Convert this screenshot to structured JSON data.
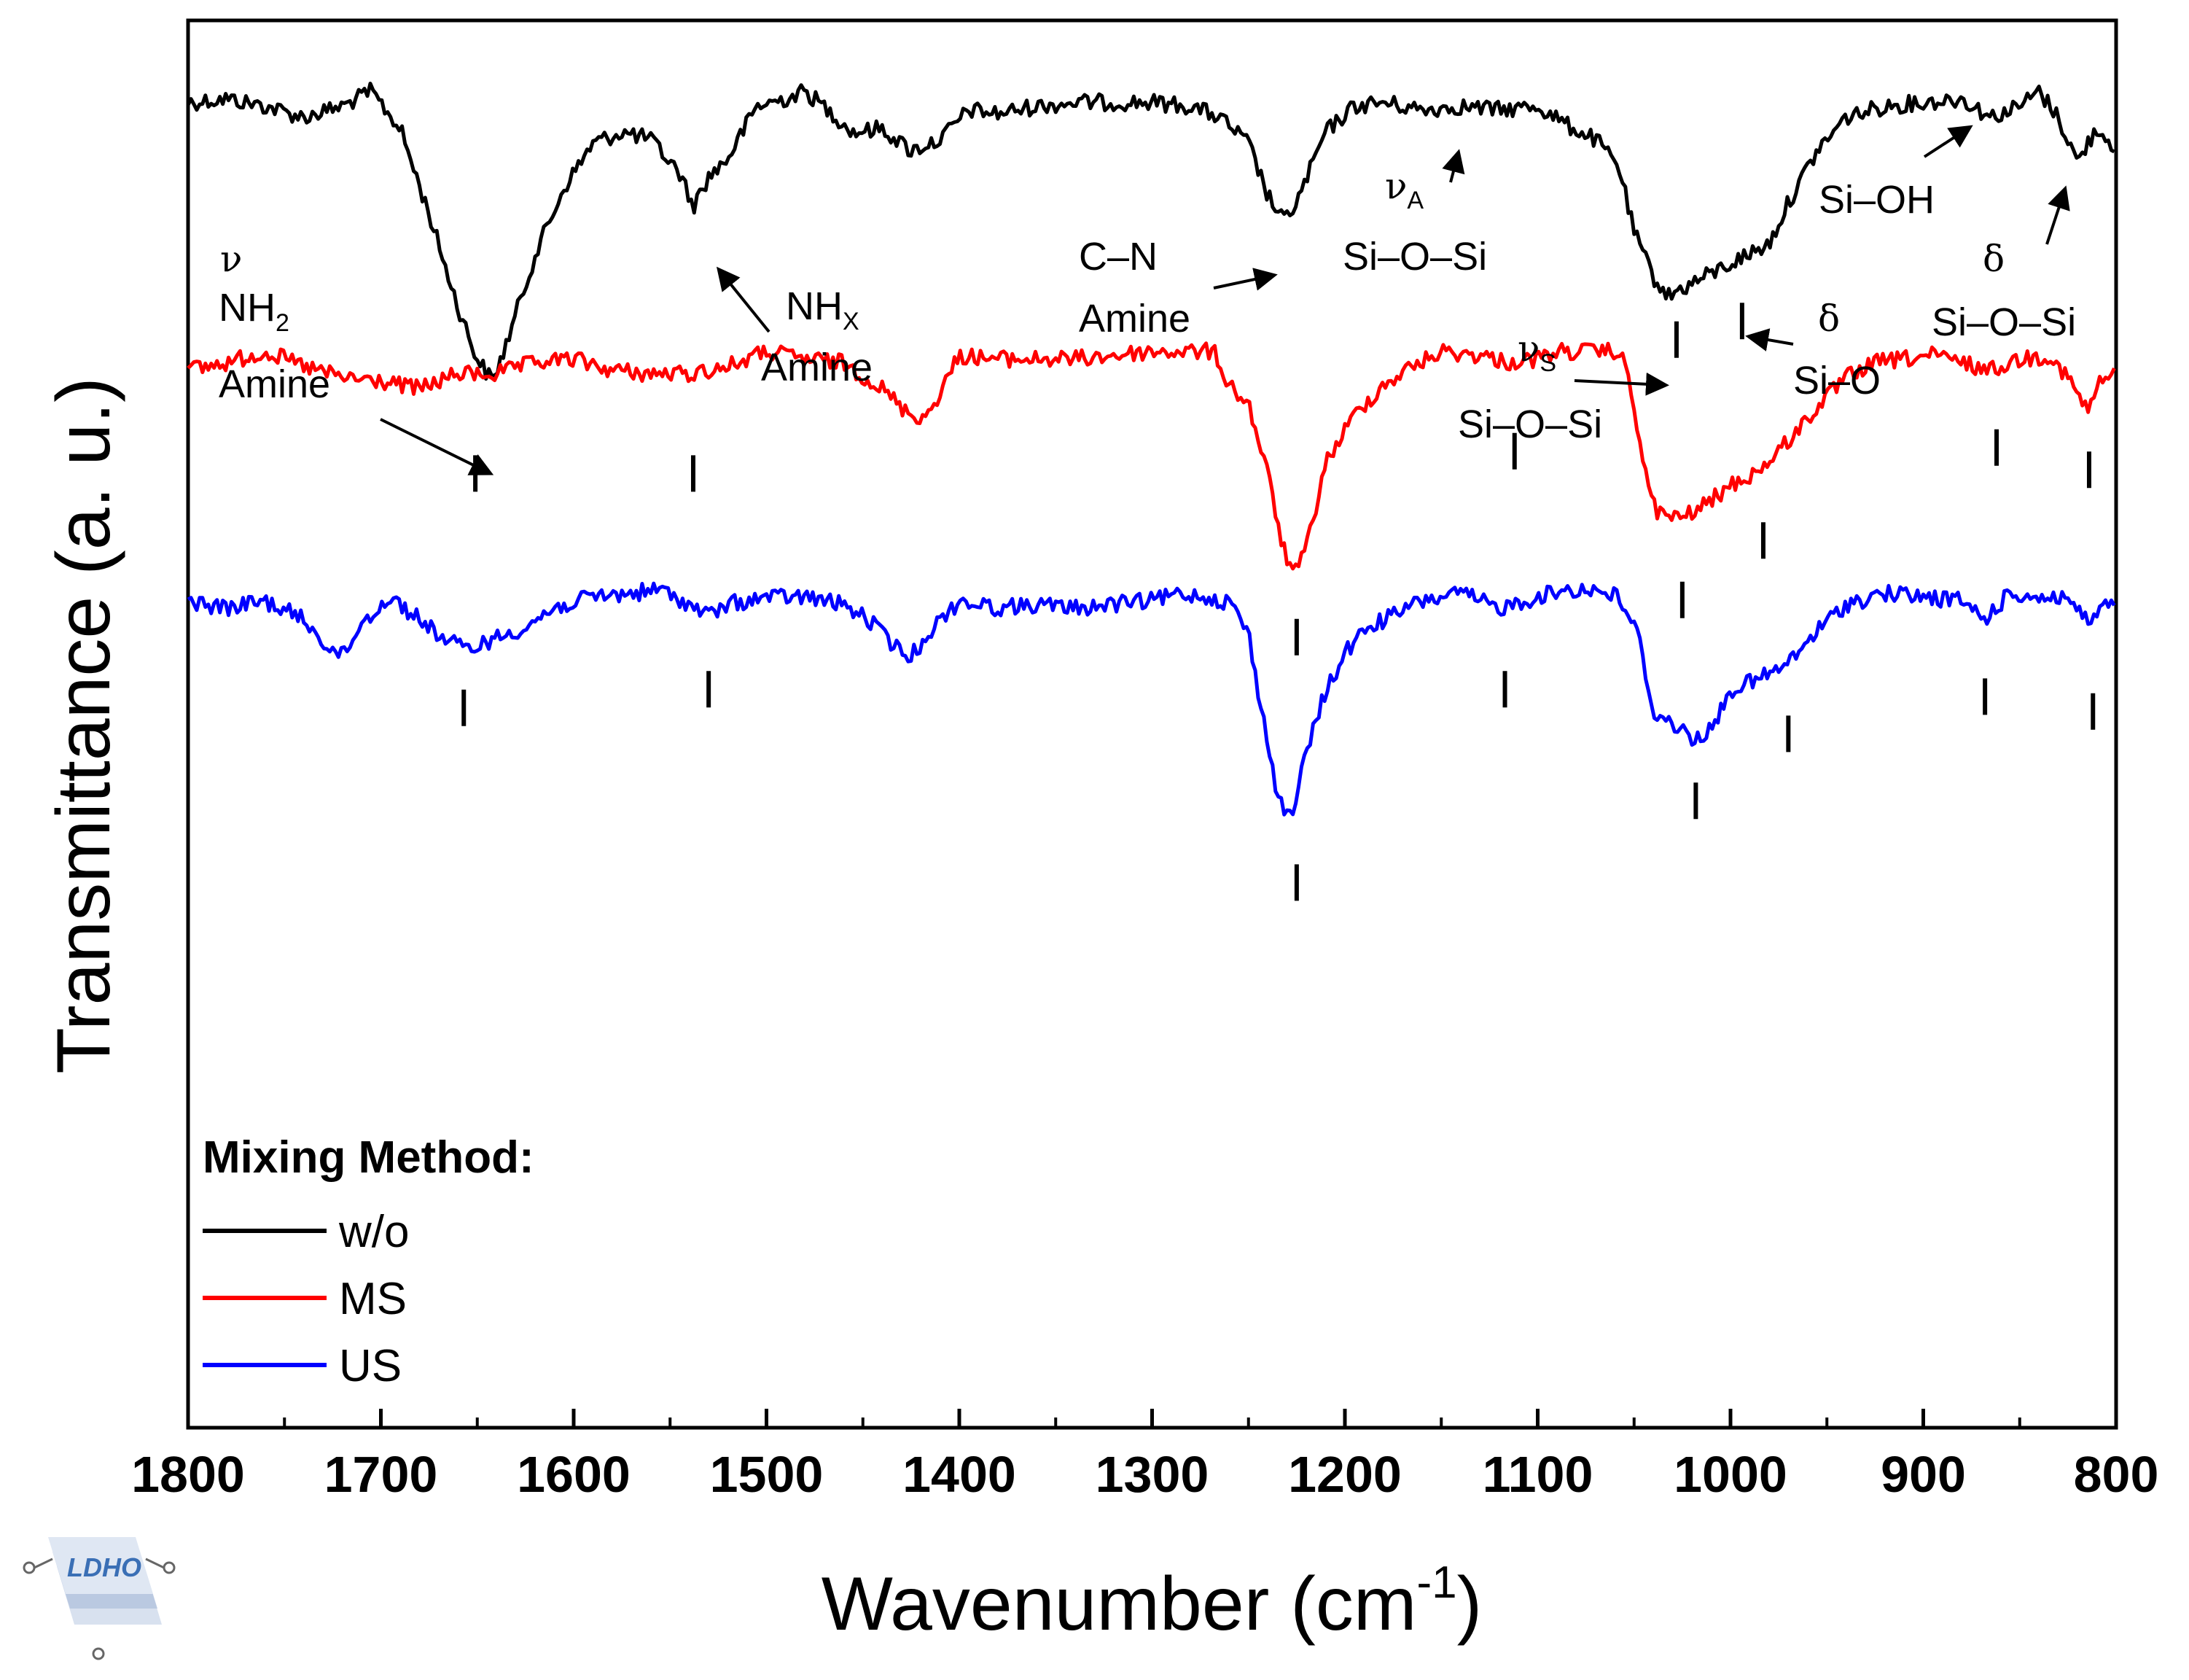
{
  "chart_data": {
    "type": "line",
    "title": "",
    "xlabel": "Wavenumber (cm",
    "xlabel_sup": "-1",
    "xlabel_end": ")",
    "ylabel": "Transmittance (a. u.)",
    "xlim": [
      1800,
      800
    ],
    "x_ticks": [
      1800,
      1700,
      1600,
      1500,
      1400,
      1300,
      1200,
      1100,
      1000,
      900,
      800
    ],
    "y_ticks": [],
    "grid": false,
    "legend": {
      "title": "Mixing Method:",
      "position": "bottom-left",
      "entries": [
        {
          "name": "w/o",
          "color": "#000000"
        },
        {
          "name": "MS",
          "color": "#ff0000"
        },
        {
          "name": "US",
          "color": "#0000ff"
        }
      ]
    },
    "series": [
      {
        "name": "w/o",
        "color": "#000000",
        "offset": 0,
        "points": [
          [
            1800,
            0.05
          ],
          [
            1780,
            0.04
          ],
          [
            1760,
            0.06
          ],
          [
            1740,
            0.09
          ],
          [
            1720,
            0.06
          ],
          [
            1705,
            0.02
          ],
          [
            1690,
            0.12
          ],
          [
            1675,
            0.35
          ],
          [
            1660,
            0.6
          ],
          [
            1650,
            0.74
          ],
          [
            1642,
            0.8
          ],
          [
            1635,
            0.7
          ],
          [
            1620,
            0.46
          ],
          [
            1605,
            0.28
          ],
          [
            1590,
            0.16
          ],
          [
            1575,
            0.13
          ],
          [
            1560,
            0.15
          ],
          [
            1545,
            0.24
          ],
          [
            1538,
            0.33
          ],
          [
            1530,
            0.25
          ],
          [
            1520,
            0.2
          ],
          [
            1505,
            0.06
          ],
          [
            1490,
            0.04
          ],
          [
            1480,
            0.02
          ],
          [
            1468,
            0.07
          ],
          [
            1455,
            0.13
          ],
          [
            1440,
            0.12
          ],
          [
            1425,
            0.18
          ],
          [
            1410,
            0.15
          ],
          [
            1395,
            0.07
          ],
          [
            1380,
            0.08
          ],
          [
            1360,
            0.06
          ],
          [
            1340,
            0.05
          ],
          [
            1320,
            0.05
          ],
          [
            1300,
            0.05
          ],
          [
            1280,
            0.06
          ],
          [
            1265,
            0.09
          ],
          [
            1250,
            0.16
          ],
          [
            1240,
            0.3
          ],
          [
            1232,
            0.37
          ],
          [
            1225,
            0.32
          ],
          [
            1210,
            0.13
          ],
          [
            1195,
            0.06
          ],
          [
            1180,
            0.05
          ],
          [
            1160,
            0.07
          ],
          [
            1140,
            0.06
          ],
          [
            1120,
            0.07
          ],
          [
            1100,
            0.06
          ],
          [
            1085,
            0.11
          ],
          [
            1070,
            0.15
          ],
          [
            1058,
            0.22
          ],
          [
            1050,
            0.4
          ],
          [
            1040,
            0.52
          ],
          [
            1032,
            0.57
          ],
          [
            1025,
            0.55
          ],
          [
            1010,
            0.51
          ],
          [
            995,
            0.47
          ],
          [
            980,
            0.43
          ],
          [
            970,
            0.32
          ],
          [
            955,
            0.18
          ],
          [
            940,
            0.09
          ],
          [
            920,
            0.06
          ],
          [
            900,
            0.05
          ],
          [
            880,
            0.04
          ],
          [
            865,
            0.09
          ],
          [
            850,
            0.06
          ],
          [
            840,
            0.02
          ],
          [
            830,
            0.09
          ],
          [
            820,
            0.21
          ],
          [
            810,
            0.12
          ],
          [
            800,
            0.17
          ]
        ],
        "peak_markers": [
          1028,
          994
        ],
        "marker_depths": [
          0.58,
          0.53
        ]
      },
      {
        "name": "MS",
        "color": "#ff0000",
        "offset": 0.72,
        "points": [
          [
            1800,
            0.05
          ],
          [
            1780,
            0.03
          ],
          [
            1760,
            0.0
          ],
          [
            1740,
            0.04
          ],
          [
            1720,
            0.07
          ],
          [
            1700,
            0.08
          ],
          [
            1680,
            0.1
          ],
          [
            1660,
            0.06
          ],
          [
            1640,
            0.06
          ],
          [
            1620,
            0.03
          ],
          [
            1600,
            0.02
          ],
          [
            1580,
            0.05
          ],
          [
            1560,
            0.06
          ],
          [
            1540,
            0.06
          ],
          [
            1520,
            0.04
          ],
          [
            1500,
            0.0
          ],
          [
            1480,
            0.02
          ],
          [
            1460,
            0.03
          ],
          [
            1440,
            0.1
          ],
          [
            1428,
            0.16
          ],
          [
            1418,
            0.18
          ],
          [
            1410,
            0.11
          ],
          [
            1400,
            0.01
          ],
          [
            1380,
            0.02
          ],
          [
            1360,
            0.02
          ],
          [
            1340,
            0.02
          ],
          [
            1320,
            0.01
          ],
          [
            1300,
            0.0
          ],
          [
            1280,
            0.0
          ],
          [
            1268,
            0.0
          ],
          [
            1260,
            0.09
          ],
          [
            1250,
            0.14
          ],
          [
            1240,
            0.33
          ],
          [
            1232,
            0.53
          ],
          [
            1226,
            0.6
          ],
          [
            1220,
            0.53
          ],
          [
            1210,
            0.3
          ],
          [
            1195,
            0.17
          ],
          [
            1180,
            0.09
          ],
          [
            1165,
            0.04
          ],
          [
            1150,
            0.0
          ],
          [
            1130,
            0.01
          ],
          [
            1115,
            0.03
          ],
          [
            1100,
            0.02
          ],
          [
            1090,
            0.0
          ],
          [
            1075,
            0.0
          ],
          [
            1058,
            0.0
          ],
          [
            1052,
            0.08
          ],
          [
            1045,
            0.32
          ],
          [
            1038,
            0.43
          ],
          [
            1028,
            0.45
          ],
          [
            1015,
            0.42
          ],
          [
            1000,
            0.36
          ],
          [
            985,
            0.32
          ],
          [
            970,
            0.24
          ],
          [
            955,
            0.15
          ],
          [
            940,
            0.07
          ],
          [
            925,
            0.03
          ],
          [
            910,
            0.02
          ],
          [
            895,
            0.01
          ],
          [
            880,
            0.03
          ],
          [
            865,
            0.05
          ],
          [
            850,
            0.02
          ],
          [
            835,
            0.01
          ],
          [
            825,
            0.07
          ],
          [
            815,
            0.16
          ],
          [
            808,
            0.08
          ],
          [
            800,
            0.06
          ]
        ],
        "peak_markers": [
          1651,
          1538,
          1112,
          1025,
          983,
          862,
          814
        ],
        "marker_depths": [
          0.22,
          0.22,
          0.16,
          0.56,
          0.4,
          0.15,
          0.21
        ]
      },
      {
        "name": "US",
        "color": "#0000ff",
        "offset": 1.36,
        "points": [
          [
            1800,
            0.03
          ],
          [
            1780,
            0.05
          ],
          [
            1760,
            0.03
          ],
          [
            1740,
            0.08
          ],
          [
            1728,
            0.15
          ],
          [
            1720,
            0.18
          ],
          [
            1710,
            0.09
          ],
          [
            1695,
            0.02
          ],
          [
            1680,
            0.08
          ],
          [
            1665,
            0.14
          ],
          [
            1655,
            0.16
          ],
          [
            1640,
            0.13
          ],
          [
            1625,
            0.1
          ],
          [
            1610,
            0.05
          ],
          [
            1590,
            0.02
          ],
          [
            1570,
            0.01
          ],
          [
            1555,
            0.0
          ],
          [
            1540,
            0.04
          ],
          [
            1530,
            0.07
          ],
          [
            1520,
            0.04
          ],
          [
            1500,
            0.02
          ],
          [
            1480,
            0.02
          ],
          [
            1460,
            0.04
          ],
          [
            1445,
            0.09
          ],
          [
            1432,
            0.16
          ],
          [
            1425,
            0.18
          ],
          [
            1415,
            0.11
          ],
          [
            1400,
            0.03
          ],
          [
            1380,
            0.05
          ],
          [
            1360,
            0.04
          ],
          [
            1340,
            0.05
          ],
          [
            1320,
            0.04
          ],
          [
            1300,
            0.03
          ],
          [
            1285,
            0.01
          ],
          [
            1270,
            0.02
          ],
          [
            1258,
            0.04
          ],
          [
            1250,
            0.12
          ],
          [
            1243,
            0.33
          ],
          [
            1235,
            0.55
          ],
          [
            1228,
            0.62
          ],
          [
            1222,
            0.48
          ],
          [
            1212,
            0.3
          ],
          [
            1200,
            0.17
          ],
          [
            1188,
            0.1
          ],
          [
            1175,
            0.07
          ],
          [
            1160,
            0.03
          ],
          [
            1140,
            0.01
          ],
          [
            1120,
            0.05
          ],
          [
            1100,
            0.02
          ],
          [
            1085,
            0.0
          ],
          [
            1070,
            0.0
          ],
          [
            1058,
            0.02
          ],
          [
            1048,
            0.12
          ],
          [
            1040,
            0.33
          ],
          [
            1030,
            0.36
          ],
          [
            1020,
            0.4
          ],
          [
            1010,
            0.38
          ],
          [
            1000,
            0.27
          ],
          [
            985,
            0.24
          ],
          [
            970,
            0.2
          ],
          [
            955,
            0.11
          ],
          [
            940,
            0.04
          ],
          [
            920,
            0.01
          ],
          [
            900,
            0.02
          ],
          [
            880,
            0.03
          ],
          [
            868,
            0.08
          ],
          [
            855,
            0.01
          ],
          [
            840,
            0.02
          ],
          [
            825,
            0.02
          ],
          [
            815,
            0.09
          ],
          [
            808,
            0.05
          ],
          [
            800,
            0.04
          ]
        ],
        "peak_markers": [
          1657,
          1530,
          1117,
          1018,
          970,
          868,
          812
        ],
        "marker_depths": [
          0.21,
          0.16,
          0.16,
          0.46,
          0.28,
          0.18,
          0.22
        ]
      }
    ],
    "center_markers": [
      {
        "x": 1225,
        "series": "MS",
        "depth": 0.66
      },
      {
        "x": 1225,
        "series": "US",
        "depth": 0.68
      }
    ],
    "annotations": {
      "nh2": {
        "greek": "ν",
        "line1": "NH",
        "sub": "2",
        "line2": "Amine"
      },
      "nhx": {
        "line1": "NH",
        "sub": "X",
        "line2": "Amine"
      },
      "cn": {
        "line1": "C–N",
        "line2": "Amine"
      },
      "nua": {
        "greek": "ν",
        "sub": "A",
        "line2": "Si–O–Si"
      },
      "nus": {
        "greek": "ν",
        "sub": "S",
        "line2": "Si–O–Si"
      },
      "delta_sio": {
        "greek": "δ",
        "line2": "Si–O"
      },
      "sioh": {
        "line1": "Si–OH"
      },
      "delta_siosi": {
        "greek": "δ",
        "line2": "Si–O–Si"
      }
    }
  },
  "logo": {
    "text": "LDHO"
  }
}
